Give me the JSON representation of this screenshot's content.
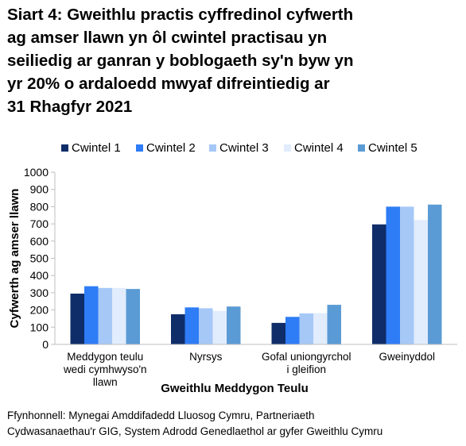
{
  "title_lines": [
    "Siart 4: Gweithlu practis cyffredinol cyfwerth",
    "ag amser llawn yn ôl cwintel practisau yn",
    "seiliedig ar ganran y boblogaeth sy'n byw yn",
    "yr 20% o ardaloedd mwyaf difreintiedig ar",
    "31 Rhagfyr 2021"
  ],
  "source_lines": [
    "Ffynhonnell: Mynegai Amddifadedd Lluosog Cymru, Partneriaeth",
    "Cydwasanaethau'r GIG, System Adrodd Genedlaethol ar gyfer Gweithlu Cymru"
  ],
  "chart_data": {
    "type": "bar",
    "xlabel": "Gweithlu Meddygon Teulu",
    "ylabel": "Cyfwerth ag amser llawn",
    "ylim": [
      0,
      1000
    ],
    "yticks": [
      0,
      100,
      200,
      300,
      400,
      500,
      600,
      700,
      800,
      900,
      1000
    ],
    "grid": false,
    "legend_position": "top",
    "categories": [
      [
        "Meddygon teulu",
        "wedi cymhwyso'n",
        "llawn"
      ],
      [
        "Nyrsys"
      ],
      [
        "Gofal uniongyrchol",
        "i gleifion"
      ],
      [
        "Gweinyddol"
      ]
    ],
    "series": [
      {
        "name": "Cwintel 1",
        "color": "#0f2d69",
        "values": [
          295,
          175,
          125,
          697
        ]
      },
      {
        "name": "Cwintel 2",
        "color": "#2e7cf6",
        "values": [
          338,
          215,
          160,
          800
        ]
      },
      {
        "name": "Cwintel 3",
        "color": "#a6c8f7",
        "values": [
          328,
          210,
          180,
          800
        ]
      },
      {
        "name": "Cwintel 4",
        "color": "#e1ecfc",
        "values": [
          328,
          195,
          182,
          722
        ]
      },
      {
        "name": "Cwintel 5",
        "color": "#5b9bd5",
        "values": [
          322,
          220,
          230,
          812
        ]
      }
    ]
  }
}
